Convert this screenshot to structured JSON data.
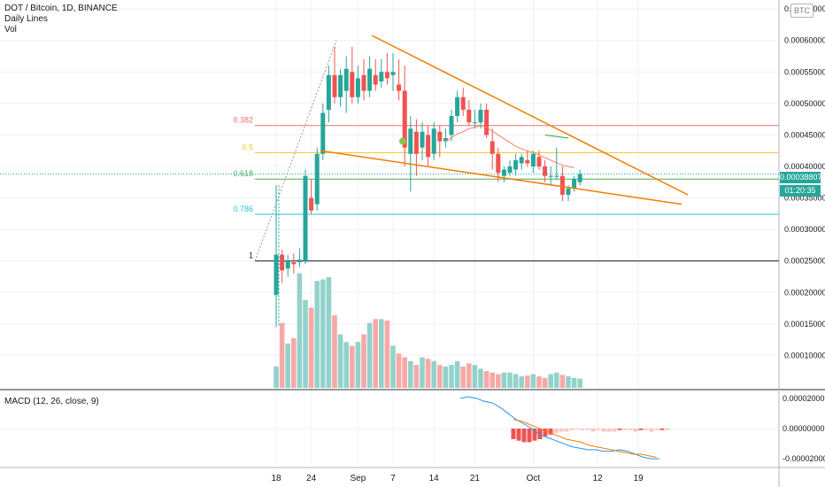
{
  "header": {
    "symbol": "DOT / Bitcoin, 1D, BINANCE",
    "indicator1": "Daily Lines",
    "indicator2": "Vol",
    "currency_badge": "BTC"
  },
  "macd": {
    "label": "MACD (12, 26, close, 9)"
  },
  "price_tags": {
    "last_price": "0.00038807",
    "countdown": "01:20:35"
  },
  "colors": {
    "up": "#26a69a",
    "down": "#ef5350",
    "up_vol": "#92d2cb",
    "down_vol": "#f7a9a7",
    "trendline": "#f57c00",
    "grid": "#eef0f3",
    "text": "#131722",
    "macd_line": "#2196f3",
    "signal_line": "#f57c00"
  },
  "chart_data": {
    "type": "candlestick",
    "x_ticks": [
      {
        "label": "18",
        "index": 0
      },
      {
        "label": "24",
        "index": 6
      },
      {
        "label": "Sep",
        "index": 14
      },
      {
        "label": "7",
        "index": 20
      },
      {
        "label": "14",
        "index": 27
      },
      {
        "label": "21",
        "index": 34
      },
      {
        "label": "Oct",
        "index": 44
      },
      {
        "label": "12",
        "index": 55
      },
      {
        "label": "19",
        "index": 62
      }
    ],
    "price_axis": {
      "ticks": [
        "0.00065000",
        "0.00060000",
        "0.00055000",
        "0.00050000",
        "0.00045000",
        "0.00040000",
        "0.00035000",
        "0.00030000",
        "0.00025000",
        "0.00020000",
        "0.00015000",
        "0.00010000"
      ],
      "ylim": [
        5e-05,
        0.00066
      ]
    },
    "macd_axis": {
      "ticks": [
        "0.00002000",
        "0.00000000",
        "-0.00002000"
      ],
      "ylim": [
        -2.4e-05,
        2.4e-05
      ]
    },
    "fib_levels": [
      {
        "label": "0.382",
        "value": 0.000465,
        "color": "#e57373"
      },
      {
        "label": "0.5",
        "value": 0.000422,
        "color": "#fbc02d"
      },
      {
        "label": "0.618",
        "value": 0.00038,
        "color": "#4caf50"
      },
      {
        "label": "0.786",
        "value": 0.000324,
        "color": "#26c6da"
      },
      {
        "label": "1",
        "value": 0.00025,
        "color": "#131722"
      }
    ],
    "candles": [
      {
        "o": 0.000196,
        "h": 0.00037,
        "l": 0.000145,
        "c": 0.00026
      },
      {
        "o": 0.00026,
        "h": 0.000268,
        "l": 0.000215,
        "c": 0.000235
      },
      {
        "o": 0.000238,
        "h": 0.00026,
        "l": 0.000225,
        "c": 0.00025
      },
      {
        "o": 0.000248,
        "h": 0.000262,
        "l": 0.00023,
        "c": 0.000245
      },
      {
        "o": 0.000248,
        "h": 0.00027,
        "l": 0.00024,
        "c": 0.000252
      },
      {
        "o": 0.00025,
        "h": 0.000395,
        "l": 0.000245,
        "c": 0.000385
      },
      {
        "o": 0.00035,
        "h": 0.00038,
        "l": 0.000325,
        "c": 0.00033
      },
      {
        "o": 0.00034,
        "h": 0.00043,
        "l": 0.00033,
        "c": 0.00042
      },
      {
        "o": 0.00042,
        "h": 0.0005,
        "l": 0.00041,
        "c": 0.000485
      },
      {
        "o": 0.00049,
        "h": 0.00056,
        "l": 0.00047,
        "c": 0.000545
      },
      {
        "o": 0.000545,
        "h": 0.00059,
        "l": 0.0005,
        "c": 0.00051
      },
      {
        "o": 0.00051,
        "h": 0.000555,
        "l": 0.000495,
        "c": 0.000545
      },
      {
        "o": 0.00052,
        "h": 0.000575,
        "l": 0.000485,
        "c": 0.000555
      },
      {
        "o": 0.00055,
        "h": 0.00059,
        "l": 0.0005,
        "c": 0.00051
      },
      {
        "o": 0.00051,
        "h": 0.00056,
        "l": 0.0005,
        "c": 0.00054
      },
      {
        "o": 0.000545,
        "h": 0.00057,
        "l": 0.000505,
        "c": 0.00052
      },
      {
        "o": 0.00052,
        "h": 0.000575,
        "l": 0.00051,
        "c": 0.000555
      },
      {
        "o": 0.000545,
        "h": 0.00057,
        "l": 0.00052,
        "c": 0.00053
      },
      {
        "o": 0.000535,
        "h": 0.00057,
        "l": 0.000525,
        "c": 0.00055
      },
      {
        "o": 0.00055,
        "h": 0.00058,
        "l": 0.00053,
        "c": 0.00054
      },
      {
        "o": 0.000545,
        "h": 0.00058,
        "l": 0.00052,
        "c": 0.00055
      },
      {
        "o": 0.00053,
        "h": 0.00057,
        "l": 0.000505,
        "c": 0.00052
      },
      {
        "o": 0.00052,
        "h": 0.00056,
        "l": 0.0004,
        "c": 0.00043
      },
      {
        "o": 0.00042,
        "h": 0.00048,
        "l": 0.00036,
        "c": 0.00046
      },
      {
        "o": 0.000455,
        "h": 0.000475,
        "l": 0.000385,
        "c": 0.00042
      },
      {
        "o": 0.00043,
        "h": 0.00047,
        "l": 0.00041,
        "c": 0.000455
      },
      {
        "o": 0.00045,
        "h": 0.000465,
        "l": 0.0004,
        "c": 0.000415
      },
      {
        "o": 0.00042,
        "h": 0.00047,
        "l": 0.00041,
        "c": 0.00046
      },
      {
        "o": 0.000455,
        "h": 0.000465,
        "l": 0.000415,
        "c": 0.00044
      },
      {
        "o": 0.00044,
        "h": 0.00046,
        "l": 0.00043,
        "c": 0.000445
      },
      {
        "o": 0.00045,
        "h": 0.00049,
        "l": 0.00044,
        "c": 0.00048
      },
      {
        "o": 0.00048,
        "h": 0.00052,
        "l": 0.00047,
        "c": 0.00051
      },
      {
        "o": 0.00051,
        "h": 0.000525,
        "l": 0.00048,
        "c": 0.00049
      },
      {
        "o": 0.00049,
        "h": 0.000505,
        "l": 0.000465,
        "c": 0.00047
      },
      {
        "o": 0.00047,
        "h": 0.00049,
        "l": 0.00046,
        "c": 0.00047
      },
      {
        "o": 0.00047,
        "h": 0.0005,
        "l": 0.00046,
        "c": 0.00049
      },
      {
        "o": 0.00049,
        "h": 0.0005,
        "l": 0.000445,
        "c": 0.00045
      },
      {
        "o": 0.00044,
        "h": 0.00046,
        "l": 0.000395,
        "c": 0.00042
      },
      {
        "o": 0.00042,
        "h": 0.00043,
        "l": 0.000375,
        "c": 0.00039
      },
      {
        "o": 0.000385,
        "h": 0.0004,
        "l": 0.000375,
        "c": 0.000395
      },
      {
        "o": 0.00039,
        "h": 0.00041,
        "l": 0.000385,
        "c": 0.0004
      },
      {
        "o": 0.000395,
        "h": 0.00042,
        "l": 0.000385,
        "c": 0.00041
      },
      {
        "o": 0.000405,
        "h": 0.00042,
        "l": 0.000395,
        "c": 0.000415
      },
      {
        "o": 0.00041,
        "h": 0.000425,
        "l": 0.0004,
        "c": 0.000405
      },
      {
        "o": 0.0004,
        "h": 0.000425,
        "l": 0.00039,
        "c": 0.00042
      },
      {
        "o": 0.000415,
        "h": 0.000425,
        "l": 0.000395,
        "c": 0.0004
      },
      {
        "o": 0.0004,
        "h": 0.00041,
        "l": 0.000375,
        "c": 0.000385
      },
      {
        "o": 0.000385,
        "h": 0.0004,
        "l": 0.00037,
        "c": 0.000385
      },
      {
        "o": 0.000385,
        "h": 0.00043,
        "l": 0.00038,
        "c": 0.000385
      },
      {
        "o": 0.000385,
        "h": 0.0004,
        "l": 0.000345,
        "c": 0.000355
      },
      {
        "o": 0.000355,
        "h": 0.00037,
        "l": 0.000345,
        "c": 0.000365
      },
      {
        "o": 0.000365,
        "h": 0.000385,
        "l": 0.00036,
        "c": 0.00038
      },
      {
        "o": 0.000375,
        "h": 0.000395,
        "l": 0.00037,
        "c": 0.000388
      }
    ],
    "volumes": [
      9.8e-05,
      0.000155,
      0.000128,
      0.000135,
      0.00022,
      0.000185,
      0.000175,
      0.00021,
      0.000212,
      0.000215,
      0.000165,
      0.00014,
      0.00013,
      0.000125,
      0.00013,
      0.00014,
      0.000155,
      0.00016,
      0.00016,
      0.000158,
      0.000125,
      0.000115,
      0.00011,
      0.000105,
      0.0001,
      0.00011,
      0.000108,
      0.000105,
      0.0001,
      9.8e-05,
      0.0001,
      0.000105,
      9.8e-05,
      0.000102,
      0.0001,
      9.5e-05,
      9.2e-05,
      9e-05,
      8.8e-05,
      9e-05,
      9e-05,
      8.8e-05,
      8.5e-05,
      8.6e-05,
      8.8e-05,
      8.5e-05,
      8.3e-05,
      8.8e-05,
      9e-05,
      8.7e-05,
      8.5e-05,
      8.3e-05,
      8.2e-05
    ],
    "sma_line": [
      0.00044,
      0.000445,
      0.000452,
      0.000455,
      0.00046,
      0.000462,
      0.000465,
      0.000462,
      0.000456,
      0.00045,
      0.000444,
      0.000438,
      0.000432,
      0.000428,
      0.000425,
      0.000422,
      0.000418,
      0.000414,
      0.00041,
      0.000406,
      0.000402,
      0.0004,
      0.000398
    ],
    "macd_line": [
      2e-05,
      2.1e-05,
      2e-05,
      1.8e-05,
      1.7e-05,
      1.4e-05,
      1e-05,
      6e-06,
      3e-06,
      0.0,
      -4e-06,
      -6e-06,
      -8e-06,
      -1e-05,
      -1.2e-05,
      -1.3e-05,
      -1.4e-05,
      -1.4e-05,
      -1.5e-05,
      -1.5e-05,
      -1.4e-05,
      -1.5e-05,
      -1.7e-05,
      -1.9e-05,
      -2e-05,
      -2e-05
    ],
    "signal_line": [
      6e-06,
      5e-06,
      3e-06,
      1e-06,
      -1e-06,
      -3e-06,
      -5e-06,
      -7e-06,
      -8e-06,
      -9e-06,
      -1.1e-05,
      -1.2e-05,
      -1.3e-05,
      -1.4e-05,
      -1.5e-05,
      -1.6e-05,
      -1.7e-05,
      -1.7e-05,
      -1.8e-05,
      -1.9e-05
    ],
    "histogram": [
      -7e-06,
      -8e-06,
      -9e-06,
      -9e-06,
      -8e-06,
      -7e-06,
      -5e-06,
      -4e-06,
      -3e-06,
      -2e-06,
      -2e-06,
      -1e-06,
      0.0,
      -1e-06,
      -1e-06,
      -2e-06,
      -1e-06,
      -2e-06,
      -2e-06,
      -2e-06,
      -1e-06,
      -1e-06,
      -1e-06,
      -2e-06,
      -1e-06,
      -1e-06,
      -2e-06,
      -1e-06,
      -1e-06,
      -1e-06
    ]
  }
}
